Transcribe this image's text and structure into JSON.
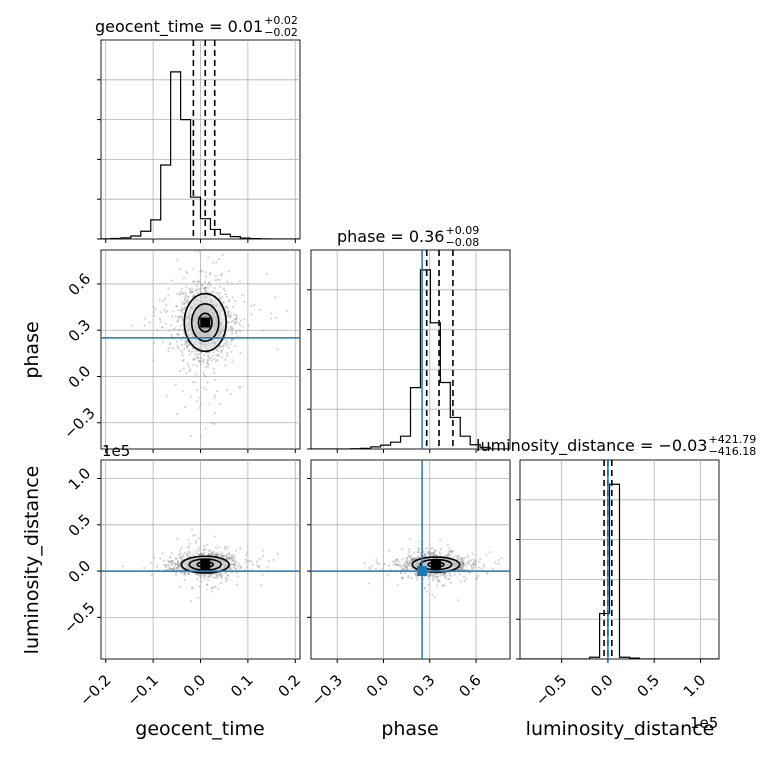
{
  "chart_data": {
    "type": "corner",
    "parameters": [
      "geocent_time",
      "phase",
      "luminosity_distance"
    ],
    "titles": [
      {
        "prefix": "geocent_time = 0.01",
        "plus": "+0.02",
        "minus": "−0.02"
      },
      {
        "prefix": "phase = 0.36",
        "plus": "+0.09",
        "minus": "−0.08"
      },
      {
        "prefix": "luminosity_distance = −0.03",
        "plus": "+421.79",
        "minus": "−416.18"
      }
    ],
    "axis_labels": {
      "x": [
        "geocent_time",
        "phase",
        "luminosity_distance"
      ],
      "y": [
        "phase",
        "luminosity_distance"
      ]
    },
    "offset_texts": {
      "luminosity_distance_y": "1e5",
      "luminosity_distance_x": "1e5"
    },
    "ranges": {
      "geocent_time": [
        -0.21,
        0.21
      ],
      "phase": [
        -0.47,
        0.82
      ],
      "luminosity_distance": [
        -0.95,
        1.2
      ]
    },
    "ticks": {
      "geocent_time": {
        "values": [
          -0.2,
          -0.1,
          0.0,
          0.1,
          0.2
        ],
        "labels": [
          "−0.2",
          "−0.1",
          "0.0",
          "0.1",
          "0.2"
        ]
      },
      "phase": {
        "values": [
          -0.3,
          0.0,
          0.3,
          0.6
        ],
        "labels": [
          "−0.3",
          "0.0",
          "0.3",
          "0.6"
        ]
      },
      "luminosity_distance_y": {
        "values": [
          -0.5,
          0.0,
          0.5,
          1.0
        ],
        "labels": [
          "−0.5",
          "0.0",
          "0.5",
          "1.0"
        ]
      },
      "luminosity_distance_x": {
        "values": [
          -0.5,
          0.0,
          0.5,
          1.0
        ],
        "labels": [
          "−0.5",
          "0.0",
          "0.5",
          "1.0"
        ]
      }
    },
    "truths": {
      "geocent_time": null,
      "phase": 0.25,
      "luminosity_distance": 0.0
    },
    "histograms": [
      {
        "param": "geocent_time",
        "bin_edges": [
          -0.21,
          -0.189,
          -0.168,
          -0.147,
          -0.126,
          -0.105,
          -0.084,
          -0.063,
          -0.042,
          -0.021,
          0.0,
          0.021,
          0.042,
          0.063,
          0.084,
          0.105,
          0.126,
          0.147,
          0.168,
          0.189,
          0.21
        ],
        "counts": [
          0.1,
          0.4,
          1.0,
          2.5,
          6.5,
          16,
          62,
          140,
          100,
          35,
          17,
          8,
          4,
          2,
          0.8,
          0.3,
          0.1,
          0,
          0,
          0
        ],
        "quantiles": [
          -0.015,
          0.01,
          0.03
        ],
        "ymax": 150
      },
      {
        "param": "phase",
        "bin_edges": [
          -0.47,
          -0.4055,
          -0.341,
          -0.2765,
          -0.212,
          -0.1475,
          -0.083,
          -0.0185,
          0.046,
          0.1105,
          0.175,
          0.2395,
          0.304,
          0.3685,
          0.433,
          0.4975,
          0.562,
          0.6265,
          0.691,
          0.7555,
          0.82
        ],
        "counts": [
          0,
          0,
          0,
          0,
          0.3,
          0.8,
          2.5,
          4.5,
          8,
          15,
          72,
          210,
          148,
          78,
          37,
          15,
          5,
          2,
          0,
          0
        ],
        "quantiles": [
          0.28,
          0.36,
          0.45
        ],
        "ymax": 210
      },
      {
        "param": "luminosity_distance",
        "bin_edges": [
          -0.95,
          -0.8425,
          -0.735,
          -0.6275,
          -0.52,
          -0.4125,
          -0.305,
          -0.1975,
          -0.09,
          0.0175,
          0.125,
          0.2325,
          0.34,
          0.4475,
          0.555,
          0.6625,
          0.77,
          0.8775,
          0.985,
          1.0925,
          1.2
        ],
        "counts": [
          0,
          0,
          0,
          0,
          0,
          0,
          0,
          2,
          52,
          200,
          2,
          1,
          0,
          0,
          0,
          0,
          0,
          0,
          0,
          0
        ],
        "quantiles": [
          -0.0416,
          -0.0003,
          0.0418
        ],
        "ymax": 205
      }
    ],
    "density_2d": [
      {
        "x": "geocent_time",
        "y": "phase",
        "center": [
          0.01,
          0.35
        ],
        "spread": [
          0.026,
          0.11
        ],
        "levels_sigma": [
          0.55,
          1.1,
          1.7
        ]
      },
      {
        "x": "geocent_time",
        "y": "luminosity_distance",
        "center": [
          0.01,
          0.07
        ],
        "spread": [
          0.028,
          0.05
        ],
        "levels_sigma": [
          0.6,
          1.2,
          1.8
        ]
      },
      {
        "x": "phase",
        "y": "luminosity_distance",
        "center": [
          0.34,
          0.07
        ],
        "spread": [
          0.085,
          0.045
        ],
        "levels_sigma": [
          0.6,
          1.2,
          1.8
        ]
      }
    ],
    "grid": true
  }
}
